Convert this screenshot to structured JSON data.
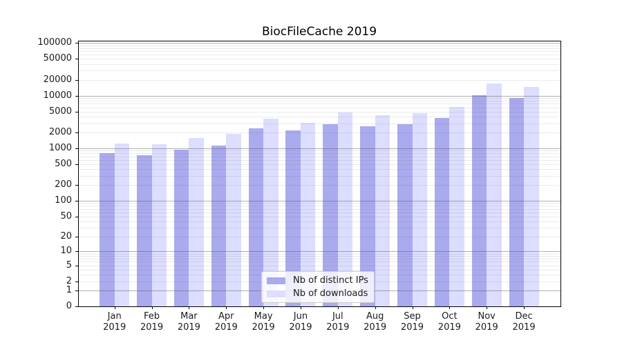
{
  "chart_data": {
    "type": "bar",
    "title": "BiocFileCache 2019",
    "categories": [
      "Jan 2019",
      "Feb 2019",
      "Mar 2019",
      "Apr 2019",
      "May 2019",
      "Jun 2019",
      "Jul 2019",
      "Aug 2019",
      "Sep 2019",
      "Oct 2019",
      "Nov 2019",
      "Dec 2019"
    ],
    "series": [
      {
        "name": "Nb of distinct IPs",
        "color": "#aaaaee",
        "values": [
          800,
          740,
          950,
          1140,
          2380,
          2200,
          2900,
          2650,
          2900,
          3720,
          10100,
          9000
        ]
      },
      {
        "name": "Nb of downloads",
        "color": "#ddddff",
        "values": [
          1220,
          1190,
          1550,
          1890,
          3700,
          3060,
          4870,
          4200,
          4670,
          6050,
          17000,
          14600
        ]
      }
    ],
    "xlabel": "",
    "ylabel": "",
    "y_scale": "log10(1+x)",
    "y_tick_values": [
      0,
      1,
      2,
      5,
      10,
      20,
      50,
      100,
      200,
      500,
      1000,
      2000,
      5000,
      10000,
      20000,
      50000,
      100000
    ],
    "ylim": [
      0,
      100000
    ],
    "grid": {
      "major_at": "powers of 10",
      "minor_at": "mantissas 2-9",
      "drawn_over_bars": true
    },
    "legend": {
      "position": "lower center",
      "entries": [
        "Nb of distinct IPs",
        "Nb of downloads"
      ]
    }
  },
  "style": {
    "background": "#ffffff",
    "bar_color_distinct_ips": "#aaaaee",
    "bar_color_downloads": "#ddddff",
    "grid_major_color": "#b0b0b0",
    "grid_minor_color": "#e8e8e8",
    "axis_color": "#000000",
    "text_color": "#1a1a1a",
    "legend_background": "rgba(255,255,255,0.8)",
    "legend_border": "#cccccc"
  }
}
